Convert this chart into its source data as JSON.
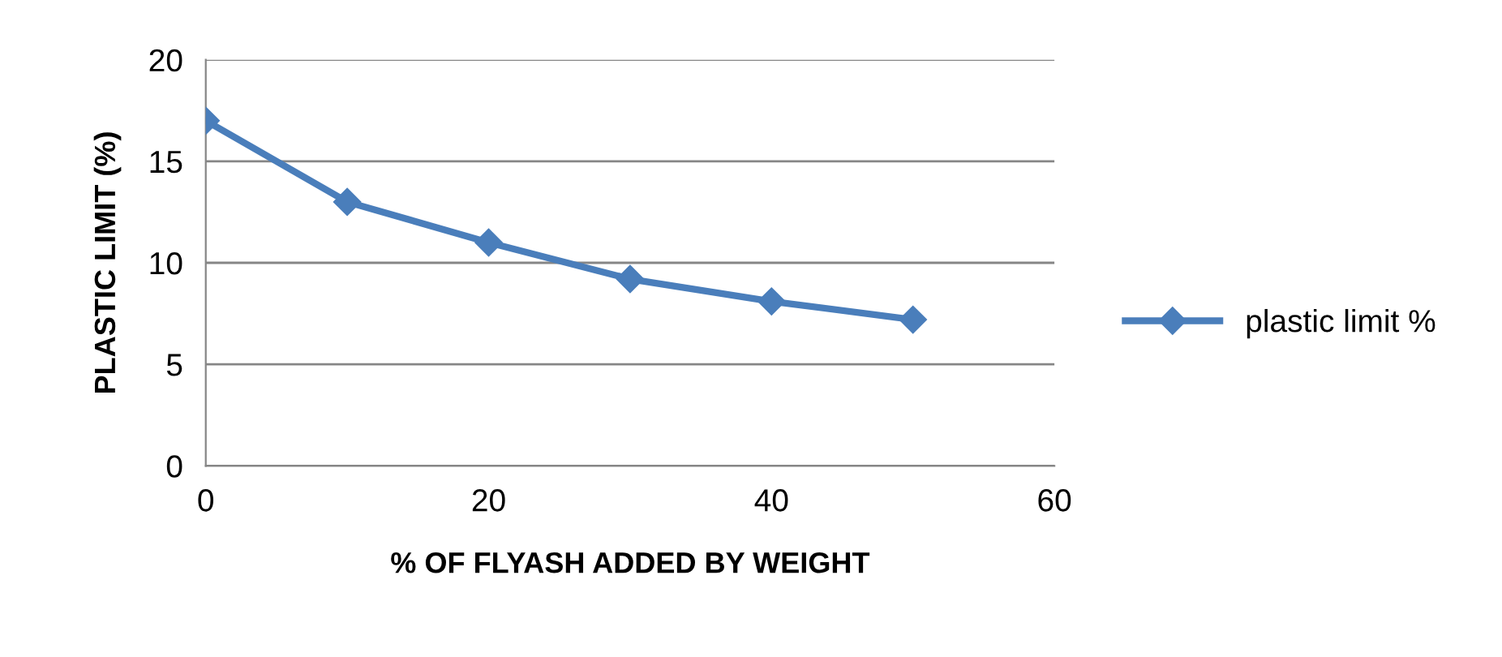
{
  "chart_data": {
    "type": "line",
    "xlabel": "% OF FLYASH ADDED BY WEIGHT",
    "ylabel": "PLASTIC LIMIT (%)",
    "x": [
      0,
      10,
      20,
      30,
      40,
      50
    ],
    "series": [
      {
        "name": "plastic limit %",
        "color": "#4a7ebb",
        "values": [
          17,
          13,
          11,
          9.2,
          8.1,
          7.2
        ]
      }
    ],
    "xlim": [
      0,
      60
    ],
    "xticks": [
      0,
      20,
      40,
      60
    ],
    "ylim": [
      0,
      20
    ],
    "yticks": [
      0,
      5,
      10,
      15,
      20
    ],
    "grid": "y",
    "legend": "right",
    "marker": "diamond",
    "line_style": "solid"
  }
}
